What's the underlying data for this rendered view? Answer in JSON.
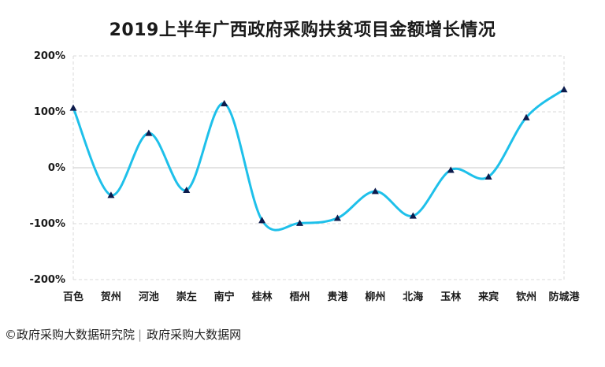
{
  "title": "2019上半年广西政府采购扶贫项目金额增长情况",
  "footer": {
    "source_left": "©政府采购大数据研究院",
    "source_right": "政府采购大数据网"
  },
  "colors": {
    "line": "#1ec0ea",
    "marker": "#0d1b4c",
    "grid": "#d9d9d9",
    "zero_line": "#c8c8c8"
  },
  "chart_data": {
    "type": "line",
    "title": "2019上半年广西政府采购扶贫项目金额增长情况",
    "categories": [
      "百色",
      "贺州",
      "河池",
      "崇左",
      "南宁",
      "桂林",
      "梧州",
      "贵港",
      "柳州",
      "北海",
      "玉林",
      "来宾",
      "钦州",
      "防城港"
    ],
    "series": [
      {
        "values": [
          107,
          -49,
          62,
          -40,
          115,
          -94,
          -99,
          -90,
          -42,
          -86,
          -4,
          -16,
          90,
          140
        ]
      }
    ],
    "ylim": [
      -200,
      200
    ],
    "yticks": [
      -200,
      -100,
      0,
      100,
      200
    ],
    "ytick_labels": [
      "-200%",
      "-100%",
      "0%",
      "100%",
      "200%"
    ],
    "grid": true,
    "smooth": true,
    "markers": "triangle",
    "xlabel": "",
    "ylabel": ""
  }
}
